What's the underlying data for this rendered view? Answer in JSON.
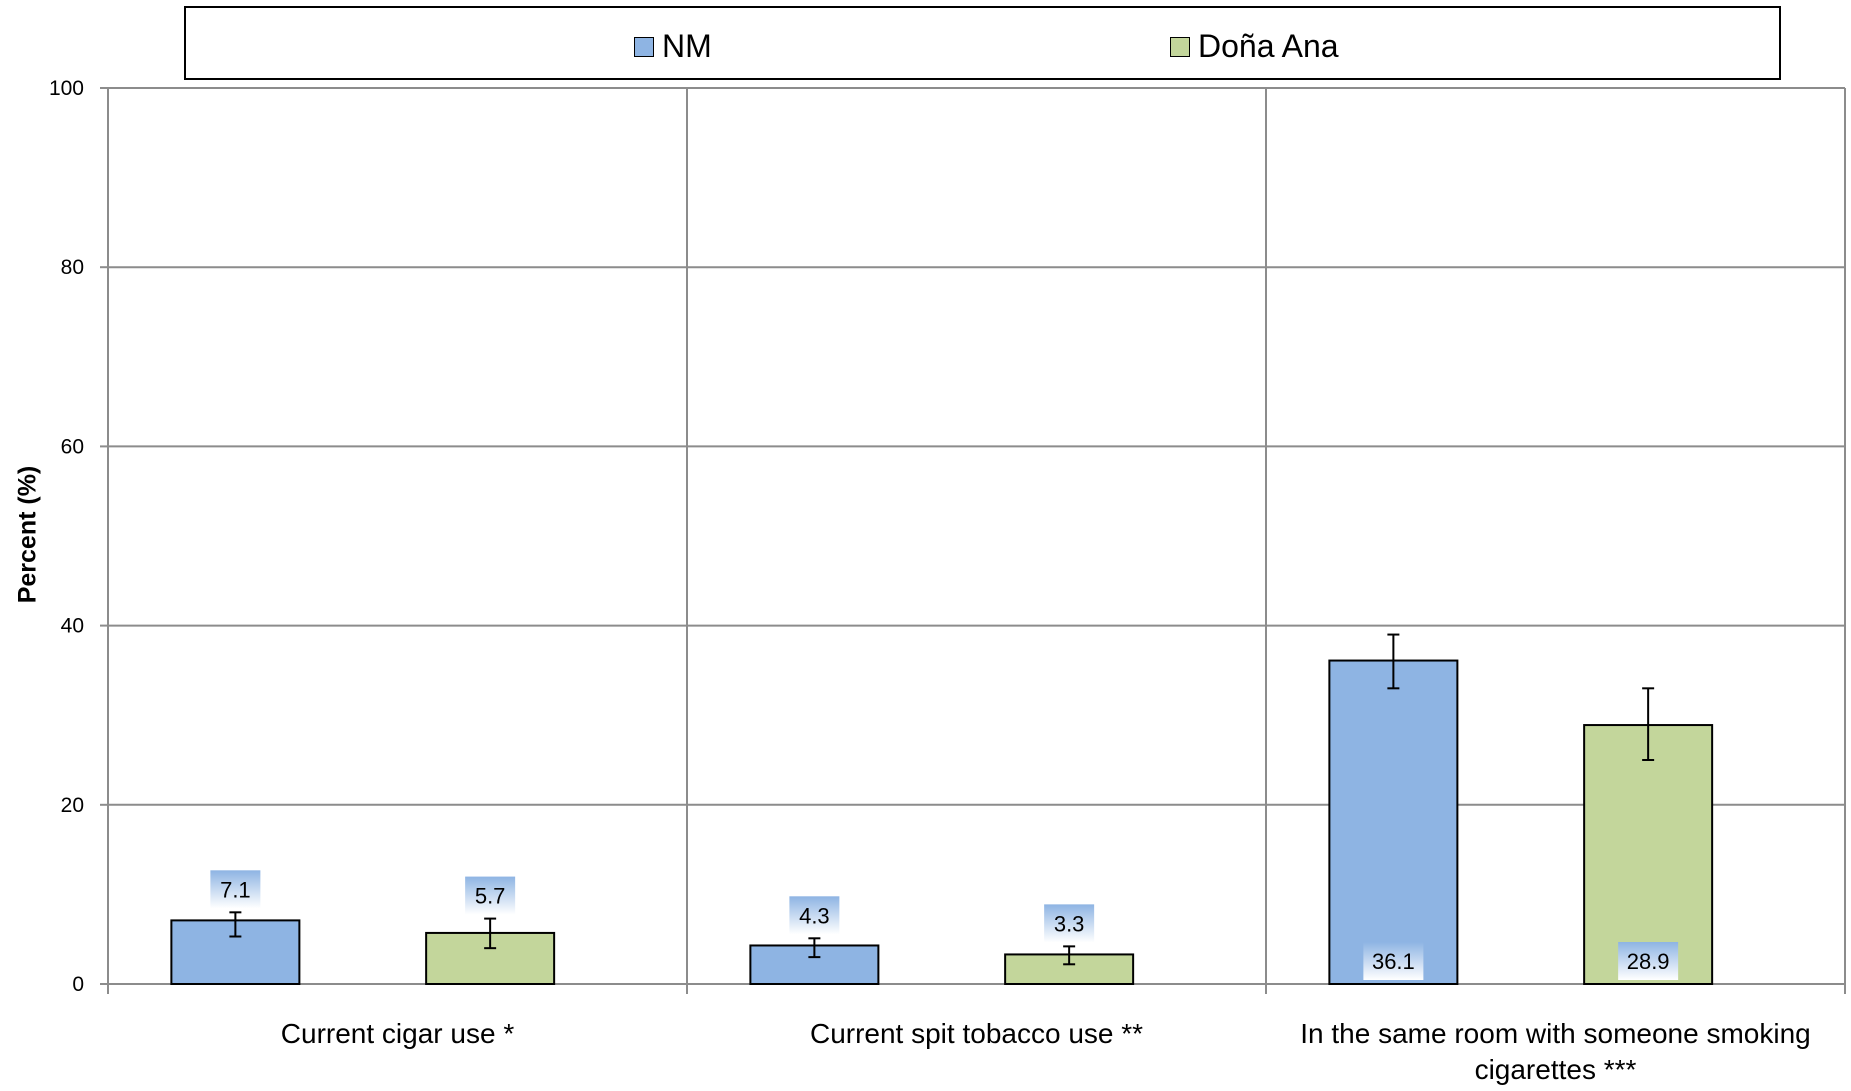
{
  "chart_data": {
    "type": "bar",
    "categories": [
      "Current cigar use *",
      "Current spit tobacco use **",
      "In the same room with someone smoking cigarettes ***"
    ],
    "category_lines": [
      [
        "Current cigar use *"
      ],
      [
        "Current spit tobacco use **"
      ],
      [
        "In the same room with someone smoking",
        "cigarettes ***"
      ]
    ],
    "series": [
      {
        "name": "NM",
        "values": [
          7.1,
          4.3,
          36.1
        ],
        "error_low": [
          5.3,
          3.0,
          33.0
        ],
        "error_high": [
          8.0,
          5.1,
          39.0
        ],
        "color": "#8eb4e3"
      },
      {
        "name": "Doña Ana",
        "values": [
          5.7,
          3.3,
          28.9
        ],
        "error_low": [
          4.0,
          2.2,
          25.0
        ],
        "error_high": [
          7.3,
          4.2,
          33.0
        ],
        "color": "#c3d69b"
      }
    ],
    "data_labels": [
      [
        "7.1",
        "4.3",
        "36.1"
      ],
      [
        "5.7",
        "3.3",
        "28.9"
      ]
    ],
    "ylabel": "Percent (%)",
    "ylim": [
      0,
      100
    ],
    "yticks": [
      "0",
      "20",
      "40",
      "60",
      "80",
      "100"
    ],
    "grid": true,
    "legend_position": "top"
  }
}
